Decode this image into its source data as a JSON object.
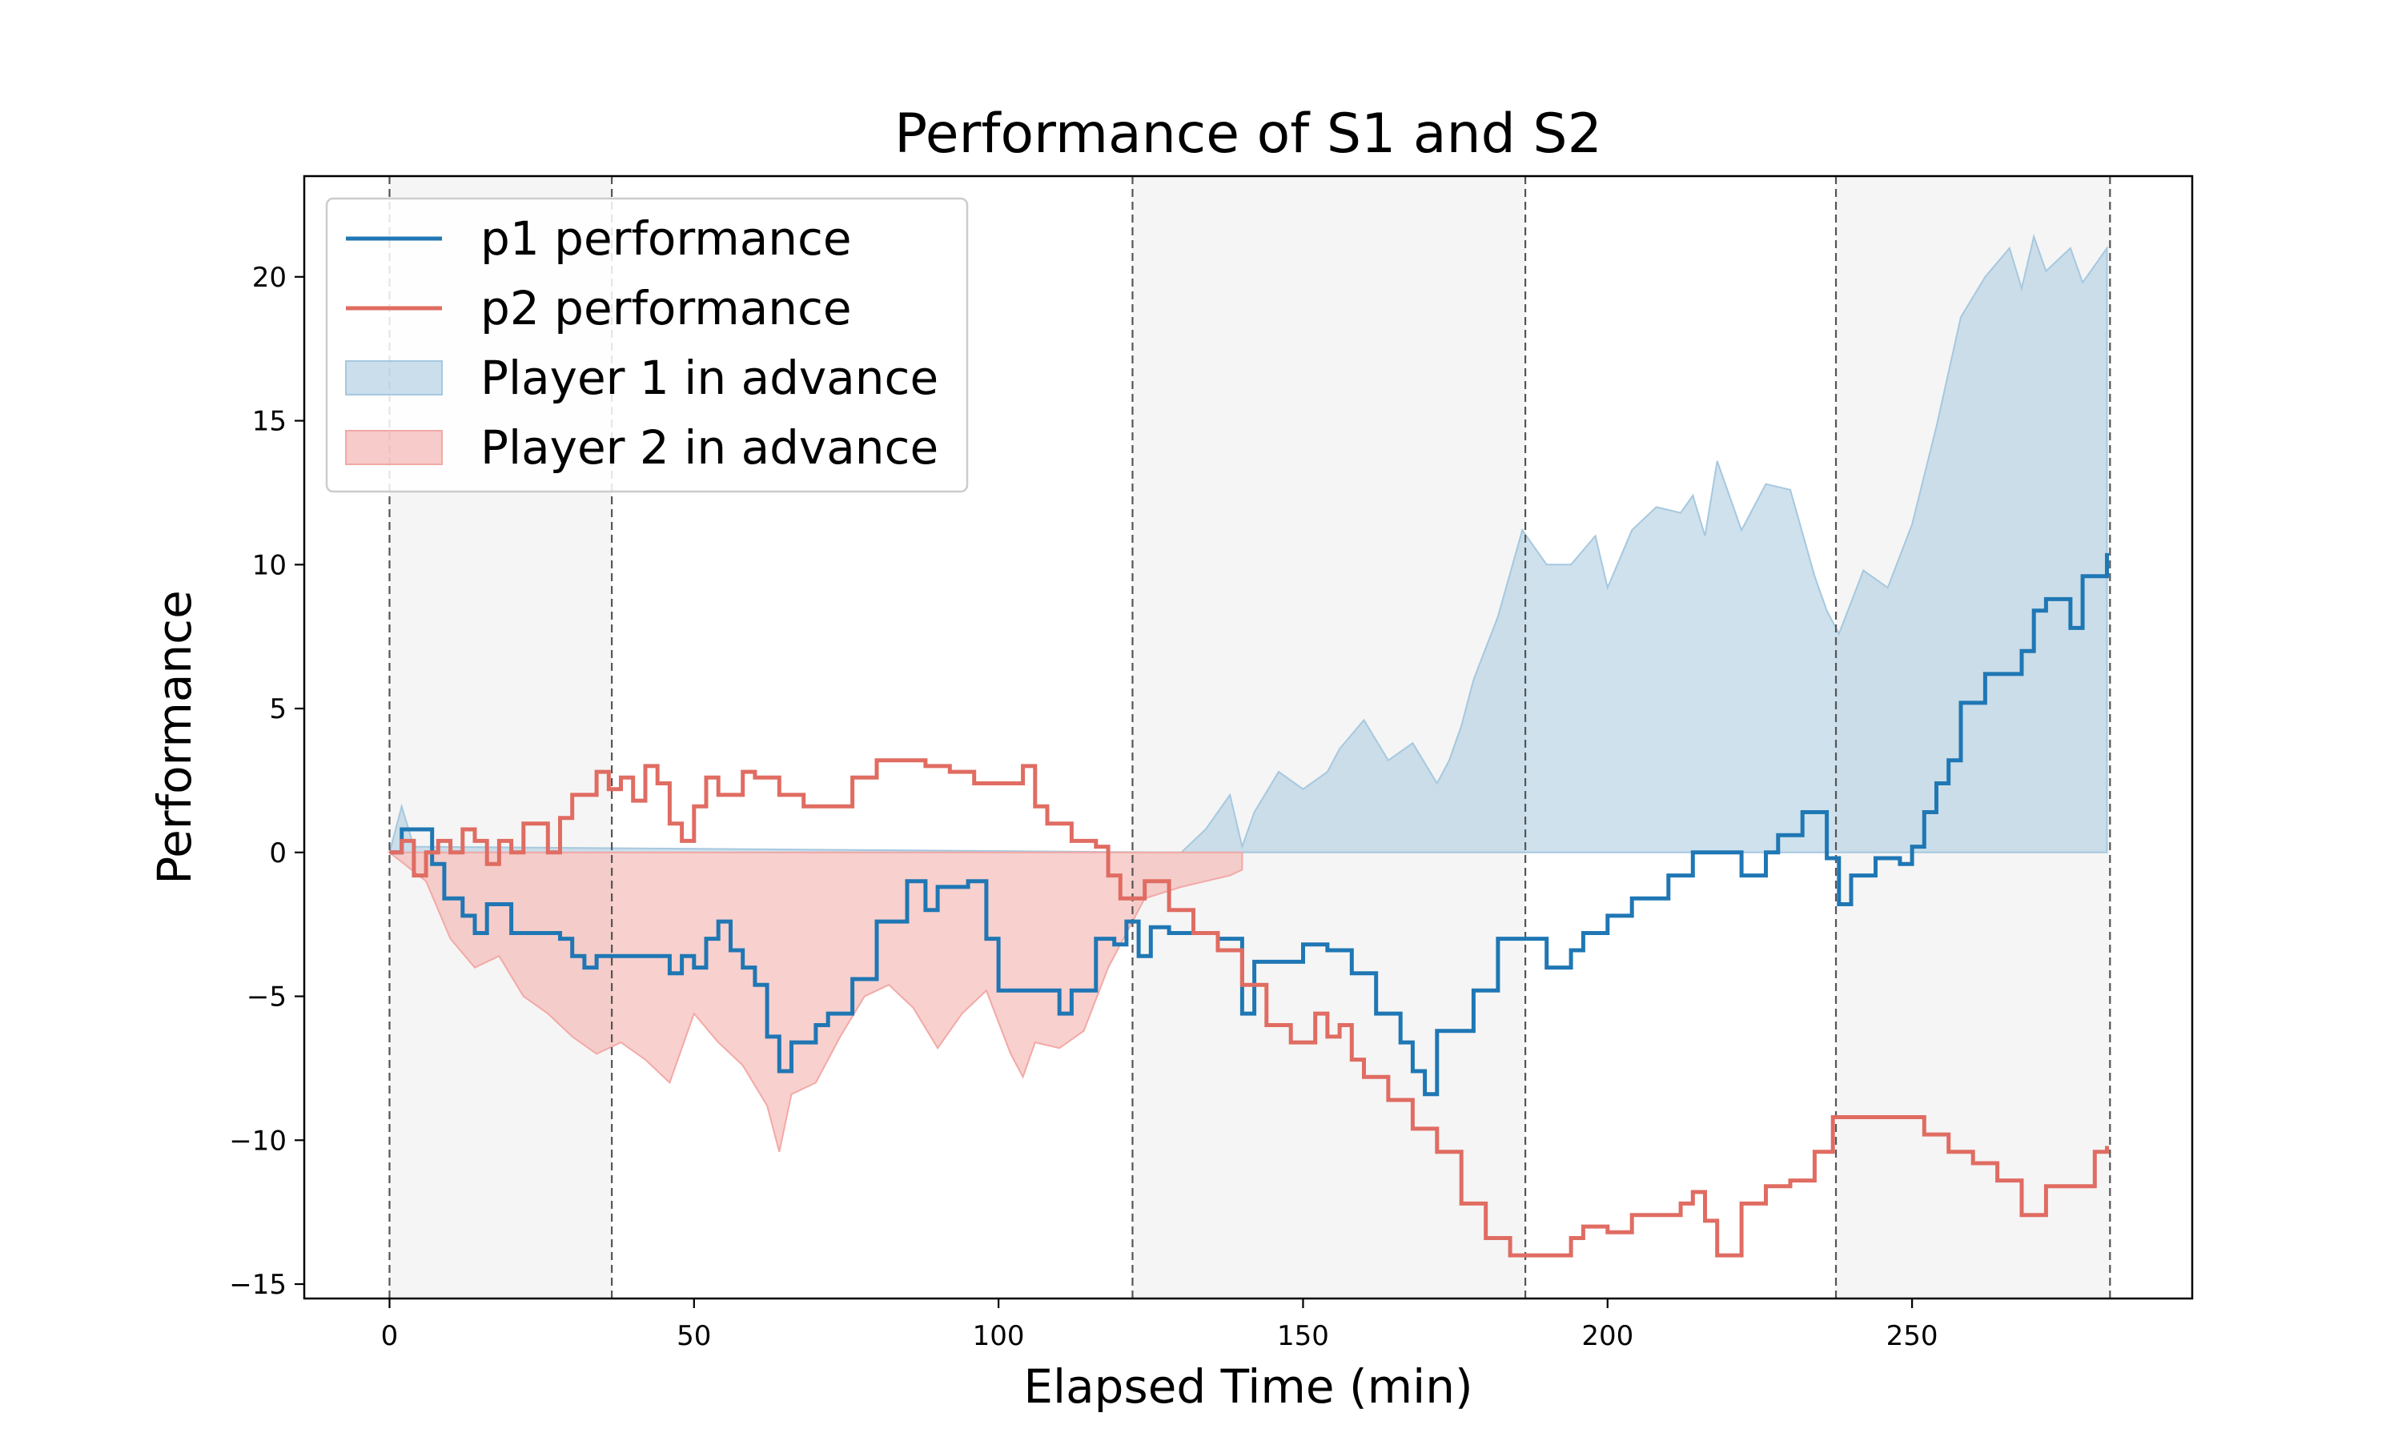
{
  "chart_data": {
    "type": "line",
    "title": "Performance of S1 and S2",
    "xlabel": "Elapsed Time (min)",
    "ylabel": "Performance",
    "xlim": [
      -14,
      296
    ],
    "ylim": [
      -15.5,
      23.5
    ],
    "xticks": [
      0,
      50,
      100,
      150,
      200,
      250
    ],
    "yticks": [
      -15,
      -10,
      -5,
      0,
      5,
      10,
      15,
      20
    ],
    "xtick_labels": [
      "0",
      "50",
      "100",
      "150",
      "200",
      "250"
    ],
    "ytick_labels": [
      "−15",
      "−10",
      "−5",
      "0",
      "5",
      "10",
      "15",
      "20"
    ],
    "grid": false,
    "legend_position": "upper-left",
    "set_boundaries": [
      0,
      36.5,
      122,
      186.5,
      237.5,
      282.5
    ],
    "shaded_sets": [
      [
        0,
        36.5
      ],
      [
        122,
        186.5
      ],
      [
        237.5,
        282.5
      ]
    ],
    "colors": {
      "p1": "#1f77b4",
      "p2": "#e06c62",
      "p1_advance": "#a6c8df",
      "p2_advance": "#f2a9a6",
      "set_shade": "#f5f5f5",
      "boundary": "#555555"
    },
    "series": [
      {
        "name": "p1 performance",
        "x": [
          0,
          2,
          5,
          7,
          9,
          12,
          14,
          16,
          20,
          25,
          28,
          30,
          32,
          34,
          36,
          40,
          44,
          46,
          48,
          50,
          52,
          54,
          56,
          58,
          60,
          62,
          64,
          66,
          68,
          70,
          72,
          76,
          80,
          85,
          88,
          90,
          95,
          98,
          100,
          104,
          108,
          110,
          112,
          116,
          119,
          121,
          123,
          125,
          128,
          132,
          136,
          140,
          142,
          144,
          148,
          150,
          154,
          158,
          162,
          166,
          168,
          170,
          172,
          176,
          178,
          182,
          186,
          190,
          194,
          196,
          200,
          204,
          208,
          210,
          214,
          218,
          222,
          226,
          228,
          232,
          234,
          236,
          238,
          240,
          244,
          248,
          250,
          252,
          254,
          256,
          258,
          262,
          266,
          268,
          270,
          272,
          276,
          278,
          282
        ],
        "values": [
          0.0,
          0.8,
          0.8,
          -0.4,
          -1.6,
          -2.2,
          -2.8,
          -1.8,
          -2.8,
          -2.8,
          -3.0,
          -3.6,
          -4.0,
          -3.6,
          -3.6,
          -3.6,
          -3.6,
          -4.2,
          -3.6,
          -4.0,
          -3.0,
          -2.4,
          -3.4,
          -4.0,
          -4.6,
          -6.4,
          -7.6,
          -6.6,
          -6.6,
          -6.0,
          -5.6,
          -4.4,
          -2.4,
          -1.0,
          -2.0,
          -1.2,
          -1.0,
          -3.0,
          -4.8,
          -4.8,
          -4.8,
          -5.6,
          -4.8,
          -3.0,
          -3.2,
          -2.4,
          -3.6,
          -2.6,
          -2.8,
          -2.8,
          -3.0,
          -5.6,
          -3.8,
          -3.8,
          -3.8,
          -3.2,
          -3.4,
          -4.2,
          -5.6,
          -6.6,
          -7.6,
          -8.4,
          -6.2,
          -6.2,
          -4.8,
          -3.0,
          -3.0,
          -4.0,
          -3.4,
          -2.8,
          -2.2,
          -1.6,
          -1.6,
          -0.8,
          0.0,
          0.0,
          -0.8,
          0.0,
          0.6,
          1.4,
          1.4,
          -0.2,
          -1.8,
          -0.8,
          -0.2,
          -0.4,
          0.2,
          1.4,
          2.4,
          3.2,
          5.2,
          6.2,
          6.2,
          7.0,
          8.4,
          8.8,
          7.8,
          9.6,
          10.4
        ]
      },
      {
        "name": "p2 performance",
        "x": [
          0,
          2,
          4,
          6,
          8,
          10,
          12,
          14,
          16,
          18,
          20,
          22,
          24,
          26,
          28,
          30,
          34,
          36,
          38,
          40,
          42,
          44,
          46,
          48,
          50,
          52,
          54,
          56,
          58,
          60,
          64,
          68,
          72,
          76,
          80,
          84,
          88,
          92,
          96,
          100,
          104,
          106,
          108,
          112,
          116,
          118,
          120,
          124,
          128,
          132,
          136,
          140,
          144,
          148,
          152,
          154,
          156,
          158,
          160,
          164,
          168,
          172,
          176,
          180,
          184,
          188,
          190,
          194,
          196,
          200,
          204,
          208,
          212,
          214,
          216,
          218,
          222,
          226,
          230,
          234,
          237,
          240,
          244,
          248,
          252,
          256,
          260,
          264,
          268,
          272,
          276,
          280,
          282
        ],
        "values": [
          0.0,
          0.4,
          -0.8,
          0.0,
          0.4,
          0.0,
          0.8,
          0.4,
          -0.4,
          0.4,
          0.0,
          1.0,
          1.0,
          0.0,
          1.2,
          2.0,
          2.8,
          2.2,
          2.6,
          1.8,
          3.0,
          2.4,
          1.0,
          0.4,
          1.6,
          2.6,
          2.0,
          2.0,
          2.8,
          2.6,
          2.0,
          1.6,
          1.6,
          2.6,
          3.2,
          3.2,
          3.0,
          2.8,
          2.4,
          2.4,
          3.0,
          1.6,
          1.0,
          0.4,
          0.2,
          -0.8,
          -1.6,
          -1.0,
          -2.0,
          -2.8,
          -3.4,
          -4.6,
          -6.0,
          -6.6,
          -5.6,
          -6.4,
          -6.0,
          -7.2,
          -7.8,
          -8.6,
          -9.6,
          -10.4,
          -12.2,
          -13.4,
          -14.0,
          -14.0,
          -14.0,
          -13.4,
          -13.0,
          -13.2,
          -12.6,
          -12.6,
          -12.2,
          -11.8,
          -12.8,
          -14.0,
          -12.2,
          -11.6,
          -11.4,
          -10.4,
          -9.2,
          -9.2,
          -9.2,
          -9.2,
          -9.8,
          -10.4,
          -10.8,
          -11.4,
          -12.6,
          -11.6,
          -11.6,
          -10.4,
          -10.2
        ]
      }
    ],
    "fills": [
      {
        "name": "Player 1 in advance",
        "x": [
          0,
          2,
          4,
          130,
          134,
          138,
          140,
          142,
          146,
          150,
          154,
          156,
          160,
          164,
          168,
          172,
          174,
          176,
          178,
          182,
          186,
          190,
          194,
          198,
          200,
          204,
          208,
          212,
          214,
          216,
          218,
          222,
          226,
          230,
          234,
          236,
          238,
          242,
          246,
          250,
          254,
          258,
          262,
          266,
          268,
          270,
          272,
          276,
          278,
          282
        ],
        "upper": [
          0.0,
          1.6,
          0.2,
          0.0,
          0.8,
          2.0,
          0.2,
          1.4,
          2.8,
          2.2,
          2.8,
          3.6,
          4.6,
          3.2,
          3.8,
          2.4,
          3.2,
          4.4,
          6.0,
          8.2,
          11.2,
          10.0,
          10.0,
          11.0,
          9.2,
          11.2,
          12.0,
          11.8,
          12.4,
          11.0,
          13.6,
          11.2,
          12.8,
          12.6,
          9.6,
          8.4,
          7.6,
          9.8,
          9.2,
          11.4,
          14.8,
          18.6,
          20.0,
          21.0,
          19.6,
          21.4,
          20.2,
          21.0,
          19.8,
          21.0
        ]
      },
      {
        "name": "Player 2 in advance",
        "x": [
          0,
          6,
          10,
          14,
          18,
          22,
          26,
          30,
          34,
          38,
          42,
          46,
          50,
          54,
          58,
          62,
          64,
          66,
          70,
          74,
          78,
          82,
          86,
          90,
          94,
          98,
          102,
          104,
          106,
          110,
          114,
          118,
          120,
          124,
          130,
          134,
          138,
          140
        ],
        "lower": [
          0.0,
          -1.0,
          -3.0,
          -4.0,
          -3.6,
          -5.0,
          -5.6,
          -6.4,
          -7.0,
          -6.6,
          -7.2,
          -8.0,
          -5.6,
          -6.6,
          -7.4,
          -8.8,
          -10.4,
          -8.4,
          -8.0,
          -6.4,
          -5.0,
          -4.6,
          -5.4,
          -6.8,
          -5.6,
          -4.8,
          -7.0,
          -7.8,
          -6.6,
          -6.8,
          -6.2,
          -4.0,
          -3.2,
          -1.6,
          -1.2,
          -1.0,
          -0.8,
          -0.6
        ]
      }
    ],
    "legend": [
      {
        "label": "p1 performance",
        "kind": "line",
        "color": "#1f77b4"
      },
      {
        "label": "p2 performance",
        "kind": "line",
        "color": "#e06c62"
      },
      {
        "label": "Player 1 in advance",
        "kind": "patch",
        "color": "#a6c8df"
      },
      {
        "label": "Player 2 in advance",
        "kind": "patch",
        "color": "#f2a9a6"
      }
    ]
  }
}
